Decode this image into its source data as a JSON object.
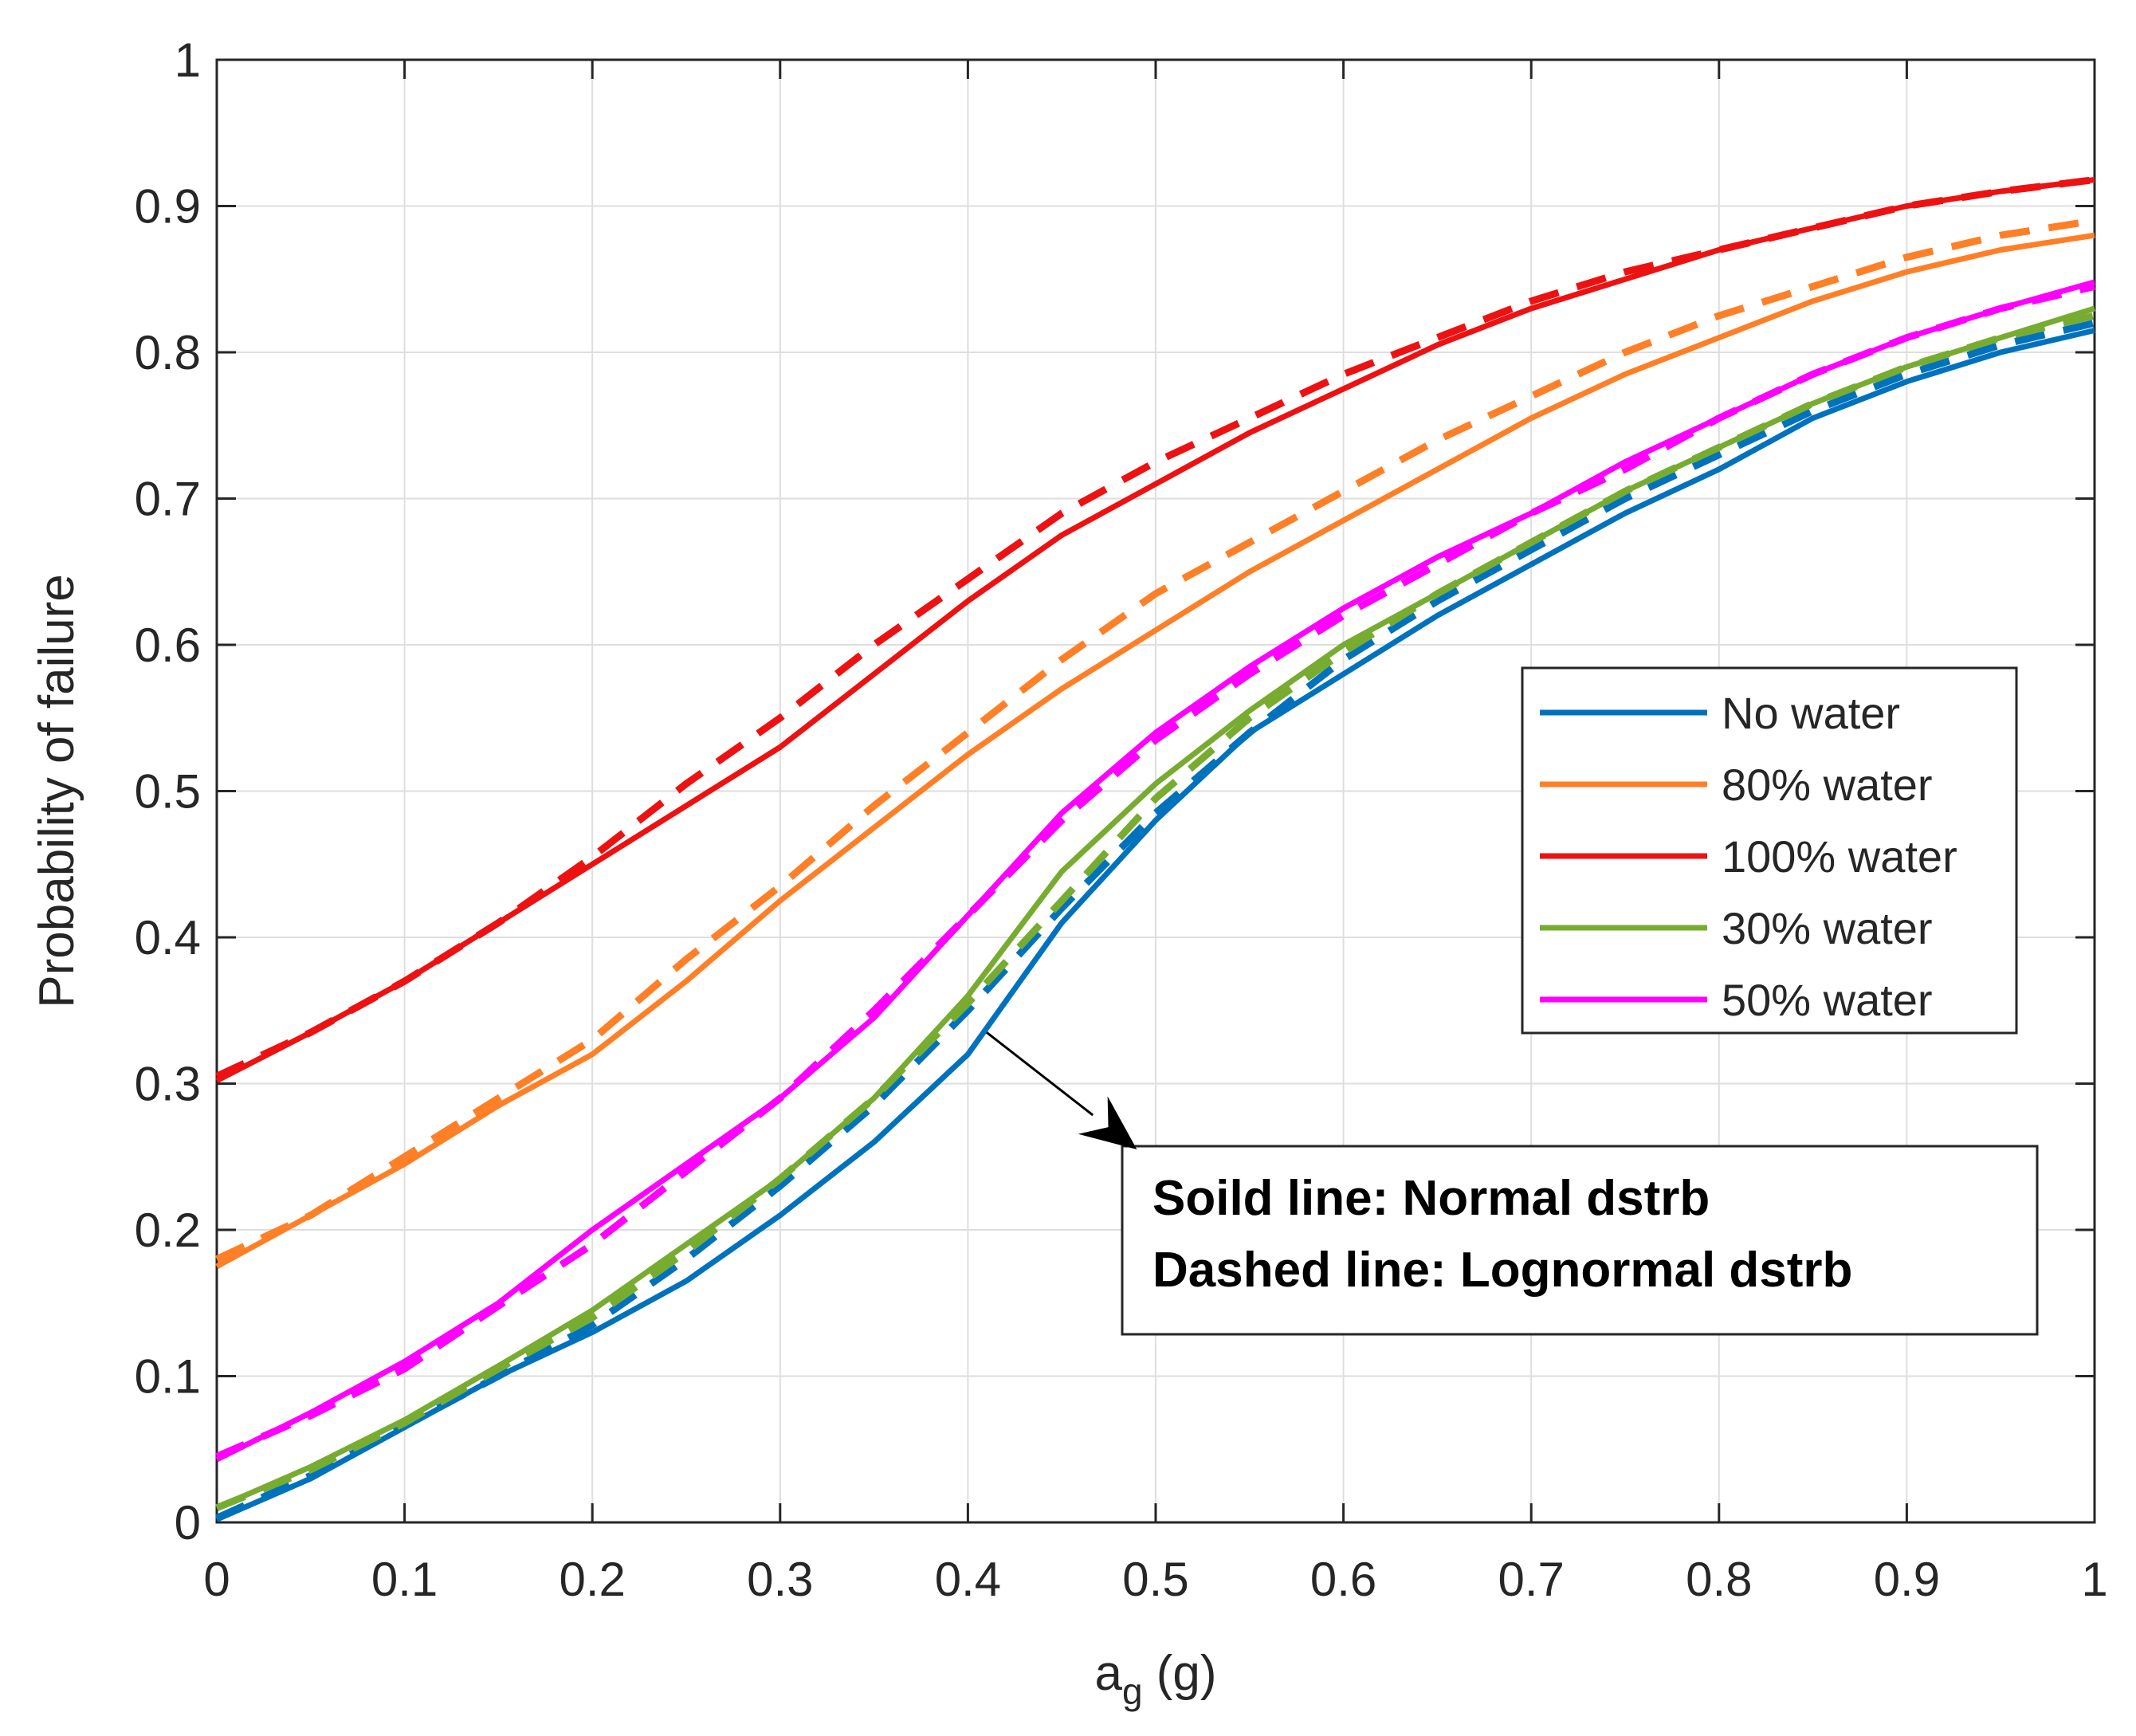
{
  "chart_data": {
    "type": "line",
    "title": "",
    "xlabel": {
      "main": "a",
      "subscript": "g",
      "unit": "(g)"
    },
    "ylabel": "Probability of failure",
    "xlim": [
      0,
      1
    ],
    "ylim": [
      0,
      1
    ],
    "grid": true,
    "xticks": [
      0,
      0.1,
      0.2,
      0.3,
      0.4,
      0.5,
      0.6,
      0.7,
      0.8,
      0.9,
      1
    ],
    "yticks": [
      0,
      0.1,
      0.2,
      0.3,
      0.4,
      0.5,
      0.6,
      0.7,
      0.8,
      0.9,
      1
    ],
    "xtick_labels": [
      "0",
      "0.1",
      "0.2",
      "0.3",
      "0.4",
      "0.5",
      "0.6",
      "0.7",
      "0.8",
      "0.9",
      "1"
    ],
    "ytick_labels": [
      "0",
      "0.1",
      "0.2",
      "0.3",
      "0.4",
      "0.5",
      "0.6",
      "0.7",
      "0.8",
      "0.9",
      "1"
    ],
    "x": [
      0,
      0.05,
      0.1,
      0.15,
      0.2,
      0.25,
      0.3,
      0.35,
      0.4,
      0.45,
      0.5,
      0.55,
      0.6,
      0.65,
      0.7,
      0.75,
      0.8,
      0.85,
      0.9,
      0.95,
      1
    ],
    "legend": {
      "location": "right",
      "entries": [
        "No water",
        "80% water",
        "100% water",
        "30% water",
        "50% water"
      ]
    },
    "series": [
      {
        "name": "No water",
        "color": "#0072BD",
        "solid": [
          0.002,
          0.03,
          0.065,
          0.1,
          0.13,
          0.165,
          0.21,
          0.26,
          0.32,
          0.41,
          0.48,
          0.54,
          0.58,
          0.62,
          0.655,
          0.69,
          0.72,
          0.755,
          0.78,
          0.8,
          0.815
        ],
        "dashed": [
          0.003,
          0.032,
          0.066,
          0.1,
          0.135,
          0.18,
          0.23,
          0.285,
          0.35,
          0.42,
          0.485,
          0.54,
          0.59,
          0.63,
          0.665,
          0.7,
          0.73,
          0.76,
          0.785,
          0.805,
          0.82
        ]
      },
      {
        "name": "80% water",
        "color": "#FF7F27",
        "solid": [
          0.175,
          0.21,
          0.245,
          0.285,
          0.32,
          0.37,
          0.425,
          0.475,
          0.525,
          0.57,
          0.61,
          0.65,
          0.685,
          0.72,
          0.755,
          0.785,
          0.81,
          0.835,
          0.855,
          0.87,
          0.88
        ],
        "dashed": [
          0.18,
          0.21,
          0.25,
          0.29,
          0.33,
          0.385,
          0.435,
          0.49,
          0.54,
          0.59,
          0.635,
          0.67,
          0.705,
          0.74,
          0.77,
          0.8,
          0.825,
          0.845,
          0.865,
          0.88,
          0.89
        ]
      },
      {
        "name": "100% water",
        "color": "#EE1111",
        "solid": [
          0.302,
          0.335,
          0.37,
          0.41,
          0.45,
          0.49,
          0.53,
          0.58,
          0.63,
          0.675,
          0.71,
          0.745,
          0.775,
          0.805,
          0.83,
          0.85,
          0.87,
          0.885,
          0.9,
          0.91,
          0.918
        ],
        "dashed": [
          0.305,
          0.335,
          0.37,
          0.41,
          0.455,
          0.505,
          0.55,
          0.6,
          0.645,
          0.69,
          0.725,
          0.755,
          0.785,
          0.81,
          0.835,
          0.855,
          0.87,
          0.885,
          0.9,
          0.91,
          0.918
        ]
      },
      {
        "name": "30% water",
        "color": "#77AC30",
        "solid": [
          0.01,
          0.038,
          0.07,
          0.107,
          0.145,
          0.19,
          0.235,
          0.29,
          0.36,
          0.445,
          0.505,
          0.555,
          0.6,
          0.635,
          0.67,
          0.705,
          0.735,
          0.765,
          0.79,
          0.81,
          0.83
        ],
        "dashed": [
          0.01,
          0.036,
          0.068,
          0.105,
          0.14,
          0.185,
          0.235,
          0.29,
          0.355,
          0.425,
          0.495,
          0.55,
          0.595,
          0.635,
          0.67,
          0.705,
          0.735,
          0.765,
          0.79,
          0.81,
          0.825
        ]
      },
      {
        "name": "50% water",
        "color": "#FF00FF",
        "solid": [
          0.043,
          0.075,
          0.11,
          0.15,
          0.2,
          0.245,
          0.29,
          0.345,
          0.415,
          0.485,
          0.54,
          0.585,
          0.625,
          0.66,
          0.69,
          0.725,
          0.755,
          0.785,
          0.81,
          0.83,
          0.848
        ],
        "dashed": [
          0.045,
          0.073,
          0.105,
          0.148,
          0.19,
          0.24,
          0.29,
          0.35,
          0.415,
          0.48,
          0.535,
          0.58,
          0.62,
          0.655,
          0.69,
          0.72,
          0.755,
          0.785,
          0.81,
          0.83,
          0.845
        ]
      }
    ],
    "annotation": {
      "lines": [
        "Soild line: Normal dstrb",
        "Dashed line: Lognormal dstrb"
      ],
      "arrow_from": [
        0.41,
        0.335
      ],
      "arrow_to": [
        0.49,
        0.255
      ]
    }
  }
}
